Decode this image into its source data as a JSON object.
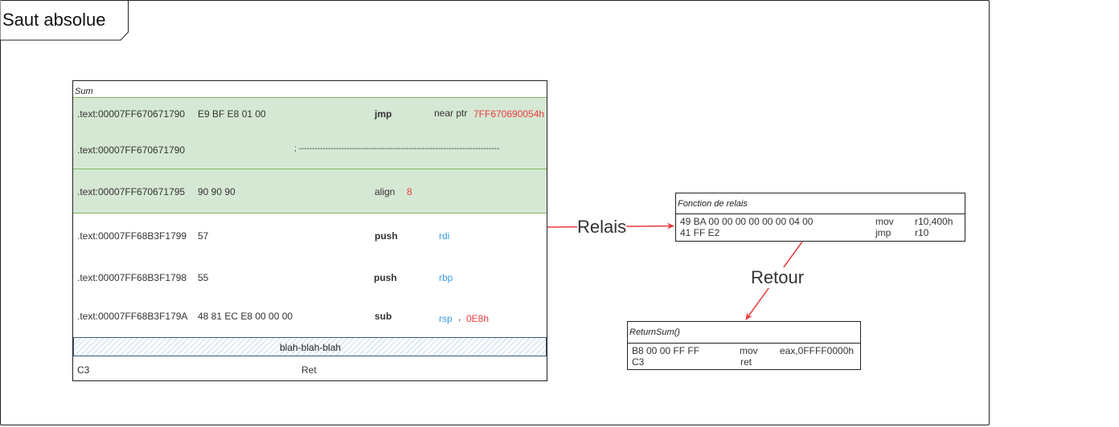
{
  "title": "Saut absolue",
  "sum_block": {
    "header": "Sum",
    "rows": [
      {
        "addr": ".text:00007FF670671790",
        "bytes": "E9 BF E8 01 00",
        "op": "jmp",
        "arg1": "near ptr",
        "arg2": "7FF670690054h"
      },
      {
        "addr": ".text:00007FF670671790",
        "separator": "; ---------------------------------------------------------------------------"
      },
      {
        "addr": ".text:00007FF670671795",
        "bytes": "90 90 90",
        "op": "align",
        "arg1": "8"
      },
      {
        "addr": ".text:00007FF68B3F1799",
        "bytes": "57",
        "op": "push",
        "arg1": "rdi"
      },
      {
        "addr": ".text:00007FF68B3F1798",
        "bytes": "55",
        "op": "push",
        "arg1": "rbp"
      },
      {
        "addr": ".text:00007FF68B3F179A",
        "bytes": "48 81 EC E8 00 00 00",
        "op": "sub",
        "arg1": "rsp",
        "comma": ",",
        "arg2": "0E8h"
      }
    ],
    "filler": "blah-blah-blah",
    "last_row": {
      "bytes": "C3",
      "op": "Ret"
    }
  },
  "relais_block": {
    "header": "Fonction de relais",
    "rows": [
      {
        "bytes": "49 BA 00 00 00 00 00 00 04 00",
        "op": "mov",
        "args": "r10,400h"
      },
      {
        "bytes": "41 FF E2",
        "op": "jmp",
        "args": "r10"
      }
    ]
  },
  "return_block": {
    "header": "ReturnSum()",
    "rows": [
      {
        "bytes": "B8 00 00 FF FF",
        "op": "mov",
        "args": "eax,0FFFF0000h"
      },
      {
        "bytes": "C3",
        "op": "ret"
      }
    ]
  },
  "arrows": {
    "relais_label": "Relais",
    "retour_label": "Retour",
    "color": "#ea3b3b"
  }
}
